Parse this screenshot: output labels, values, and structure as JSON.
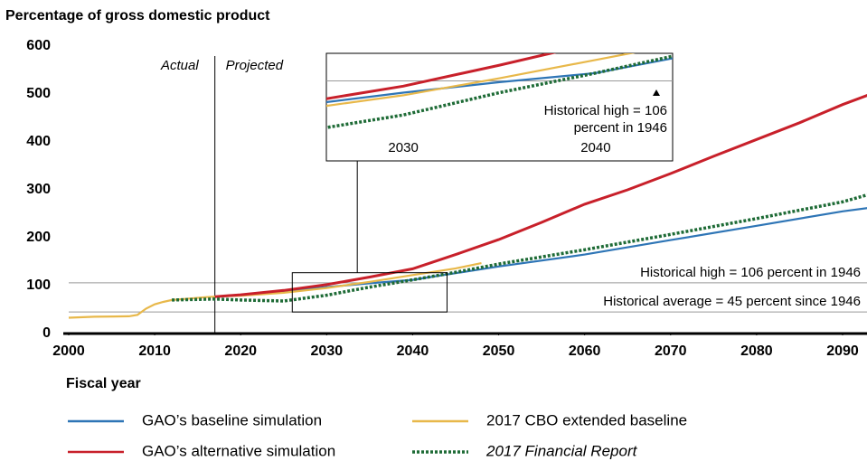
{
  "chart_data": {
    "type": "line",
    "title": "Percentage of gross domestic product",
    "x_label": "Fiscal year",
    "xlim": [
      2000,
      2093
    ],
    "xticks": [
      2000,
      2010,
      2020,
      2030,
      2040,
      2050,
      2060,
      2070,
      2080,
      2090
    ],
    "ylim": [
      0,
      600
    ],
    "yticks": [
      0,
      100,
      200,
      300,
      400,
      500,
      600
    ],
    "divider": {
      "x": 2017,
      "left_label": "Actual",
      "right_label": "Projected"
    },
    "reference_lines": [
      {
        "value": 106,
        "label": "Historical high = 106 percent in 1946"
      },
      {
        "value": 45,
        "label": "Historical average = 45 percent since 1946"
      }
    ],
    "series": [
      {
        "name": "GAO’s baseline simulation",
        "color": "#2e75b6",
        "x": [
          2017,
          2020,
          2025,
          2030,
          2035,
          2040,
          2045,
          2050,
          2060,
          2070,
          2080,
          2090,
          2093
        ],
        "values": [
          77,
          80,
          88,
          97,
          105,
          112,
          126,
          140,
          165,
          195,
          225,
          255,
          262
        ]
      },
      {
        "name": "2017 CBO extended baseline",
        "color": "#e8b84a",
        "x": [
          2000,
          2003,
          2007,
          2008,
          2009,
          2010,
          2011,
          2012,
          2014,
          2016,
          2017,
          2020,
          2025,
          2030,
          2035,
          2040,
          2045,
          2048
        ],
        "values": [
          33,
          35,
          36,
          39,
          52,
          61,
          66,
          70,
          73,
          76,
          77,
          79,
          85,
          95,
          108,
          122,
          136,
          147
        ]
      },
      {
        "name": "GAO’s alternative simulation",
        "color": "#c8202a",
        "x": [
          2017,
          2020,
          2025,
          2030,
          2035,
          2040,
          2045,
          2050,
          2055,
          2060,
          2065,
          2070,
          2075,
          2080,
          2085,
          2090,
          2093
        ],
        "values": [
          77,
          81,
          90,
          102,
          118,
          135,
          165,
          196,
          232,
          270,
          300,
          334,
          370,
          405,
          440,
          478,
          498
        ]
      },
      {
        "name": "2017 Financial Report",
        "color": "#1e6b36",
        "dashed": true,
        "italic": true,
        "x": [
          2012,
          2017,
          2020,
          2025,
          2030,
          2035,
          2040,
          2045,
          2050,
          2060,
          2070,
          2080,
          2090,
          2093
        ],
        "values": [
          70,
          72,
          70,
          68,
          80,
          97,
          112,
          128,
          145,
          175,
          207,
          240,
          275,
          290
        ]
      }
    ],
    "inset": {
      "xlim": [
        2026,
        2044
      ],
      "ylim": [
        45,
        127
      ],
      "xticks": [
        2030,
        2040
      ],
      "annotation": [
        "Historical high = 106",
        "percent in 1946"
      ]
    }
  }
}
